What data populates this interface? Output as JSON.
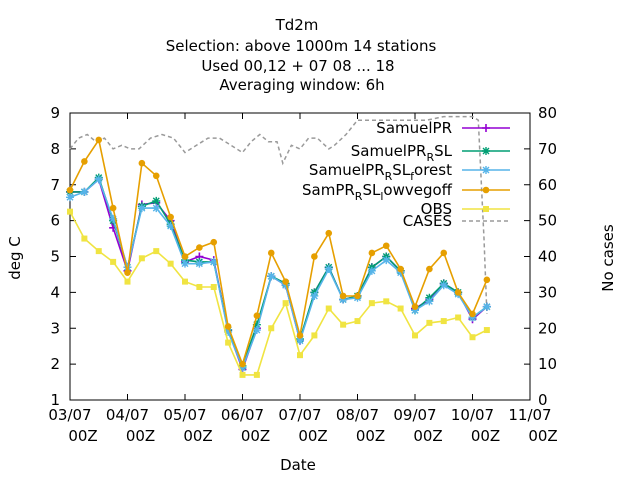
{
  "chart_data": {
    "type": "line",
    "title_lines": [
      "Td2m",
      "Selection: above 1000m     14 stations",
      "Used  00,12  + 07 08 ... 18",
      "Averaging window:  6h"
    ],
    "xlabel": "Date",
    "ylabel": "deg C",
    "y2label": "No cases",
    "ylim": [
      1,
      9
    ],
    "y2lim": [
      0,
      80
    ],
    "y_ticks": [
      "1",
      "2",
      "3",
      "4",
      "5",
      "6",
      "7",
      "8",
      "9"
    ],
    "y2_ticks": [
      "0",
      "10",
      "20",
      "30",
      "40",
      "50",
      "60",
      "70",
      "80"
    ],
    "x_tick_dates": [
      "03/07",
      "04/07",
      "05/07",
      "06/07",
      "07/07",
      "08/07",
      "09/07",
      "10/07",
      "11/07"
    ],
    "x_tick_hours": [
      "00Z",
      "00Z",
      "00Z",
      "00Z",
      "00Z",
      "00Z",
      "00Z",
      "00Z",
      "00Z"
    ],
    "xlim_days": [
      0,
      8
    ],
    "x_days": [
      0.0,
      0.25,
      0.5,
      0.75,
      1.0,
      1.25,
      1.5,
      1.75,
      2.0,
      2.25,
      2.5,
      2.75,
      3.0,
      3.25,
      3.5,
      3.75,
      4.0,
      4.25,
      4.5,
      4.75,
      5.0,
      5.25,
      5.5,
      5.75,
      6.0,
      6.25,
      6.5,
      6.75,
      7.0,
      7.25
    ],
    "legend_position": "top-right",
    "series": [
      {
        "name_main": "SamuelPR",
        "name_sub": "",
        "name_tail": "",
        "color": "#9400d3",
        "marker": "plus",
        "values": [
          6.8,
          6.8,
          7.15,
          5.8,
          4.6,
          6.45,
          6.5,
          6.0,
          4.85,
          5.0,
          4.9,
          2.95,
          1.85,
          3.0,
          4.45,
          4.2,
          2.65,
          4.0,
          4.7,
          3.8,
          3.9,
          4.7,
          5.0,
          4.6,
          3.55,
          3.8,
          4.25,
          4.0,
          3.25,
          3.6
        ]
      },
      {
        "name_main": "SamuelPR",
        "name_sub": "R",
        "name_tail": "SL",
        "color": "#009e73",
        "marker": "star",
        "values": [
          6.8,
          6.8,
          7.2,
          6.0,
          4.7,
          6.4,
          6.55,
          5.9,
          4.9,
          4.85,
          4.85,
          2.95,
          1.95,
          3.1,
          4.45,
          4.25,
          2.7,
          4.0,
          4.7,
          3.8,
          3.9,
          4.7,
          5.0,
          4.6,
          3.5,
          3.85,
          4.25,
          4.0,
          3.3,
          3.6
        ]
      },
      {
        "name_main": "SamuelPR",
        "name_sub": "R",
        "name_tail": "SL",
        "name_sub2": "f",
        "name_tail2": "orest",
        "color": "#56b4e9",
        "marker": "star",
        "values": [
          6.65,
          6.8,
          7.15,
          6.05,
          4.7,
          6.35,
          6.35,
          5.85,
          4.8,
          4.8,
          4.85,
          2.9,
          1.9,
          2.95,
          4.45,
          4.2,
          2.65,
          3.9,
          4.65,
          3.8,
          3.85,
          4.6,
          4.9,
          4.55,
          3.5,
          3.75,
          4.2,
          3.95,
          3.3,
          3.6
        ]
      },
      {
        "name_main": "SamPR",
        "name_sub": "R",
        "name_tail": "SL",
        "name_sub2": "l",
        "name_tail2": "owvegoff",
        "color": "#e69f00",
        "marker": "dot",
        "values": [
          6.85,
          7.65,
          8.25,
          6.35,
          4.55,
          7.6,
          7.25,
          6.1,
          5.0,
          5.25,
          5.4,
          3.05,
          2.0,
          3.35,
          5.1,
          4.3,
          2.8,
          5.0,
          5.65,
          3.9,
          3.9,
          5.1,
          5.3,
          4.65,
          3.6,
          4.65,
          5.1,
          4.0,
          3.4,
          4.35
        ]
      },
      {
        "name_main": "OBS",
        "name_sub": "",
        "name_tail": "",
        "color": "#f0e442",
        "marker": "square",
        "values": [
          6.25,
          5.5,
          5.15,
          4.85,
          4.3,
          4.95,
          5.15,
          4.8,
          4.3,
          4.15,
          4.15,
          2.6,
          1.7,
          1.7,
          3.0,
          3.7,
          2.25,
          2.8,
          3.55,
          3.1,
          3.2,
          3.7,
          3.75,
          3.55,
          2.8,
          3.15,
          3.2,
          3.3,
          2.75,
          2.95
        ]
      }
    ],
    "cases_series": {
      "name": "CASES",
      "color": "#9a9a9a",
      "axis": "y2",
      "x_days": [
        0.0,
        0.15,
        0.3,
        0.45,
        0.6,
        0.75,
        0.9,
        1.05,
        1.2,
        1.4,
        1.6,
        1.8,
        2.0,
        2.2,
        2.4,
        2.6,
        2.8,
        3.0,
        3.15,
        3.3,
        3.45,
        3.6,
        3.7,
        3.85,
        4.0,
        4.15,
        4.3,
        4.5,
        4.6,
        4.8,
        5.0,
        5.3,
        5.6,
        5.9,
        6.2,
        6.5,
        6.8,
        7.0,
        7.1,
        7.2,
        7.25
      ],
      "values": [
        70,
        73,
        74,
        72,
        73,
        70,
        71,
        70,
        70,
        73,
        74,
        73,
        69,
        71,
        73,
        73,
        71,
        69,
        72,
        74,
        72,
        72,
        66,
        71,
        70,
        73,
        73,
        70,
        71,
        74,
        78,
        78,
        78,
        78,
        78,
        79,
        79,
        79,
        78,
        45,
        24
      ]
    }
  }
}
